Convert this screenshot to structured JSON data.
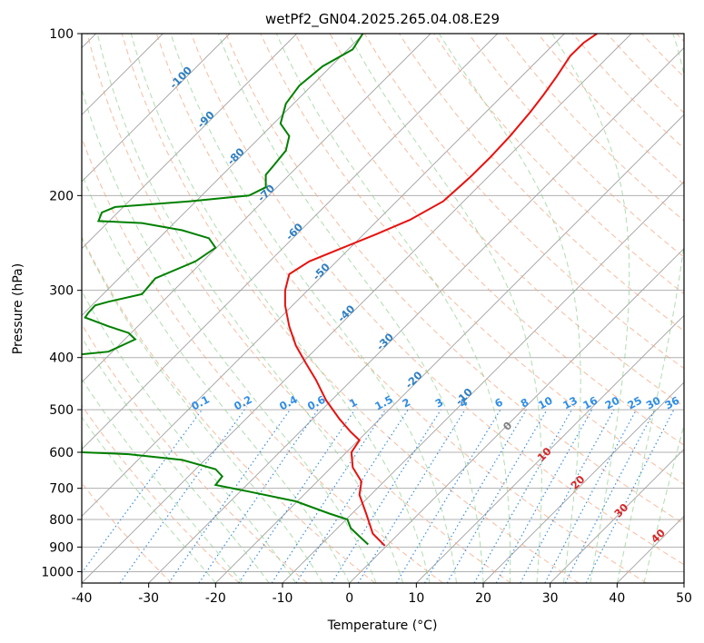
{
  "chart_data": {
    "type": "line",
    "title": "wetPf2_GN04.2025.265.04.08.E29",
    "xlabel": "Temperature (°C)",
    "ylabel": "Pressure (hPa)",
    "xlim": [
      -40,
      50
    ],
    "ylim": [
      1050,
      100
    ],
    "y_scale": "log",
    "x_ticks": [
      -40,
      -30,
      -20,
      -10,
      0,
      10,
      20,
      30,
      40,
      50
    ],
    "y_ticks": [
      100,
      200,
      300,
      400,
      500,
      600,
      700,
      800,
      900,
      1000
    ],
    "grid": true,
    "series": [
      {
        "color": "#e8110e",
        "points": [
          [
            5.3,
            895
          ],
          [
            3.5,
            850
          ],
          [
            2.5,
            780
          ],
          [
            1.5,
            720
          ],
          [
            1.8,
            680
          ],
          [
            0.5,
            640
          ],
          [
            0.3,
            600
          ],
          [
            1.5,
            570
          ],
          [
            0.2,
            550
          ],
          [
            -1.5,
            520
          ],
          [
            -3.5,
            480
          ],
          [
            -5,
            440
          ],
          [
            -6.5,
            410
          ],
          [
            -8,
            380
          ],
          [
            -9,
            350
          ],
          [
            -9.6,
            320
          ],
          [
            -9.6,
            300
          ],
          [
            -9,
            280
          ],
          [
            -6,
            265
          ],
          [
            -1,
            250
          ],
          [
            4,
            236
          ],
          [
            9,
            222
          ],
          [
            14,
            205
          ],
          [
            18,
            185
          ],
          [
            21,
            170
          ],
          [
            24,
            155
          ],
          [
            27,
            140
          ],
          [
            29,
            130
          ],
          [
            31,
            120
          ],
          [
            33,
            110
          ],
          [
            35,
            104
          ],
          [
            37,
            100
          ]
        ]
      },
      {
        "color": "#008000",
        "points": [
          [
            2.8,
            890
          ],
          [
            1.5,
            860
          ],
          [
            0.2,
            830
          ],
          [
            -0.3,
            800
          ],
          [
            -3,
            780
          ],
          [
            -8,
            740
          ],
          [
            -15,
            710
          ],
          [
            -20,
            690
          ],
          [
            -19,
            665
          ],
          [
            -20,
            645
          ],
          [
            -25,
            620
          ],
          [
            -33,
            605
          ],
          [
            -40,
            600
          ],
          [
            -40.5,
            395
          ],
          [
            -36,
            390
          ],
          [
            -32,
            370
          ],
          [
            -33,
            360
          ],
          [
            -36,
            350
          ],
          [
            -39.5,
            337
          ],
          [
            -39,
            330
          ],
          [
            -38,
            320
          ],
          [
            -36,
            315
          ],
          [
            -31,
            305
          ],
          [
            -29,
            285
          ],
          [
            -23,
            265
          ],
          [
            -20,
            250
          ],
          [
            -21,
            240
          ],
          [
            -25,
            232
          ],
          [
            -31,
            225
          ],
          [
            -37.5,
            223
          ],
          [
            -37,
            215
          ],
          [
            -35,
            210
          ],
          [
            -24,
            205
          ],
          [
            -15,
            200
          ],
          [
            -12.5,
            193
          ],
          [
            -12.5,
            183
          ],
          [
            -11.5,
            177
          ],
          [
            -9.5,
            165
          ],
          [
            -9,
            155
          ],
          [
            -10.3,
            147
          ],
          [
            -9.5,
            135
          ],
          [
            -7.5,
            125
          ],
          [
            -4,
            115
          ],
          [
            0.5,
            107
          ],
          [
            2,
            100
          ]
        ]
      }
    ],
    "isotherm_labels": [
      "-100",
      "-90",
      "-80",
      "-70",
      "-60",
      "-50",
      "-40",
      "-30",
      "-20",
      "-10"
    ],
    "mixing_ratio_labels": [
      "0.1",
      "0.2",
      "0.4",
      "0.6",
      "1",
      "1.5",
      "2",
      "3",
      "4",
      "6",
      "8",
      "10",
      "13",
      "16",
      "20",
      "25",
      "30",
      "36"
    ],
    "moist_adiabat_labels": [
      "0",
      "10",
      "20",
      "30",
      "40"
    ]
  }
}
